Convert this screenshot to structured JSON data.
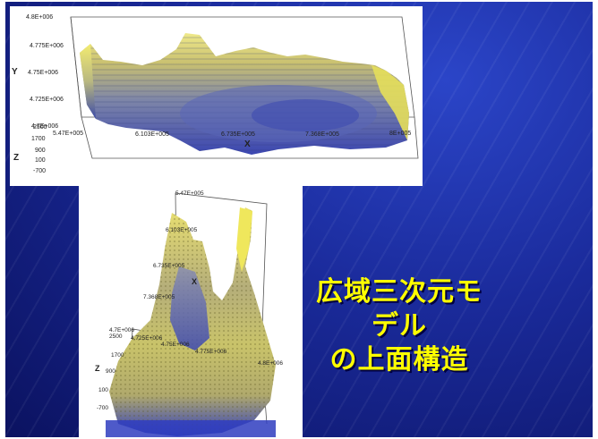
{
  "slide": {
    "title_line1": "広域三次元モデル",
    "title_line2": "の上面構造",
    "colors": {
      "title": "#ffff00",
      "background": "#1a2a9a",
      "surface_high": "#e8e060",
      "surface_low": "#3a45b0"
    }
  },
  "top_plot": {
    "y_axis_label": "Y",
    "x_axis_label": "X",
    "z_axis_label": "Z",
    "y_ticks": [
      "4.8E+006",
      "4.775E+006",
      "4.75E+006",
      "4.725E+006",
      "4.7E+006"
    ],
    "x_ticks": [
      "5.47E+005",
      "6.103E+005",
      "6.735E+005",
      "7.368E+005",
      "8E+005"
    ],
    "z_ticks": [
      "2500",
      "1700",
      "900",
      "100",
      "-700"
    ]
  },
  "bottom_plot": {
    "x_axis_label": "X",
    "z_axis_label": "Z",
    "x_ticks": [
      "5.47E+005",
      "6.103E+005",
      "6.735E+005",
      "7.368E+005"
    ],
    "y_ticks": [
      "4.7E+006",
      "4.725E+006",
      "4.75E+006",
      "4.775E+006",
      "4.8E+006"
    ],
    "z_ticks": [
      "2500",
      "1700",
      "900",
      "100",
      "-700"
    ]
  }
}
